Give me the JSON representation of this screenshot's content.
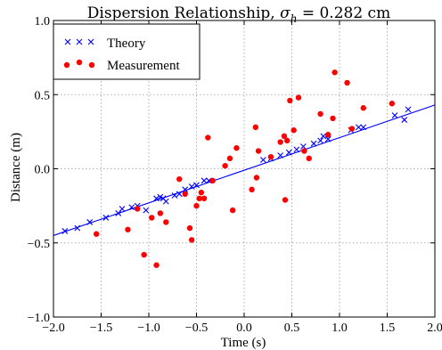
{
  "chart_data": {
    "type": "scatter",
    "title_main": "Dispersion Relationship, ",
    "title_sigma": "σ",
    "title_sub": "h",
    "title_tail": " = 0.282 cm",
    "xlabel": "Time (s)",
    "ylabel": "Distance (m)",
    "xlim": [
      -2.0,
      2.0
    ],
    "ylim": [
      -1.0,
      1.0
    ],
    "xticks": [
      -2.0,
      -1.5,
      -1.0,
      -0.5,
      0.0,
      0.5,
      1.0,
      1.5,
      2.0
    ],
    "yticks": [
      -1.0,
      -0.5,
      0.0,
      0.5,
      1.0
    ],
    "xtick_labels": [
      "−2.0",
      "−1.5",
      "−1.0",
      "−0.5",
      "0.0",
      "0.5",
      "1.0",
      "1.5",
      "2.0"
    ],
    "ytick_labels": [
      "−1.0",
      "−0.5",
      "0.0",
      "0.5",
      "1.0"
    ],
    "grid": true,
    "legend_position": "top-left",
    "colors": {
      "theory": "#0000ff",
      "measurement": "#ff0000",
      "line": "#0000ff"
    },
    "fit_line": {
      "x": [
        -2.0,
        2.0
      ],
      "y": [
        -0.45,
        0.43
      ]
    },
    "series": [
      {
        "name": "Theory",
        "marker": "x",
        "x": [
          -1.88,
          -1.75,
          -1.62,
          -1.45,
          -1.32,
          -1.28,
          -1.18,
          -1.12,
          -1.03,
          -0.92,
          -0.88,
          -0.85,
          -0.82,
          -0.73,
          -0.68,
          -0.62,
          -0.55,
          -0.5,
          -0.42,
          -0.37,
          0.2,
          0.28,
          0.38,
          0.47,
          0.55,
          0.62,
          0.73,
          0.8,
          0.83,
          0.88,
          1.12,
          1.2,
          1.25,
          1.58,
          1.68,
          1.72
        ],
        "y": [
          -0.42,
          -0.4,
          -0.36,
          -0.33,
          -0.3,
          -0.27,
          -0.26,
          -0.25,
          -0.28,
          -0.2,
          -0.19,
          -0.2,
          -0.22,
          -0.18,
          -0.17,
          -0.14,
          -0.12,
          -0.11,
          -0.08,
          -0.08,
          0.06,
          0.07,
          0.09,
          0.11,
          0.13,
          0.15,
          0.17,
          0.19,
          0.22,
          0.2,
          0.26,
          0.28,
          0.28,
          0.36,
          0.33,
          0.4
        ]
      },
      {
        "name": "Measurement",
        "marker": "o",
        "x": [
          -1.55,
          -1.22,
          -1.12,
          -1.05,
          -0.97,
          -0.92,
          -0.88,
          -0.82,
          -0.68,
          -0.62,
          -0.57,
          -0.55,
          -0.5,
          -0.47,
          -0.45,
          -0.42,
          -0.38,
          -0.33,
          -0.2,
          -0.15,
          -0.12,
          -0.08,
          0.08,
          0.12,
          0.13,
          0.15,
          0.28,
          0.38,
          0.42,
          0.43,
          0.45,
          0.48,
          0.52,
          0.57,
          0.63,
          0.68,
          0.8,
          0.88,
          0.93,
          0.95,
          1.08,
          1.13,
          1.25,
          1.55
        ],
        "y": [
          -0.44,
          -0.41,
          -0.27,
          -0.58,
          -0.33,
          -0.65,
          -0.3,
          -0.36,
          -0.07,
          -0.17,
          -0.4,
          -0.48,
          -0.25,
          -0.2,
          -0.16,
          -0.2,
          0.21,
          -0.08,
          0.02,
          0.07,
          -0.28,
          0.14,
          -0.14,
          0.28,
          -0.06,
          0.12,
          0.08,
          0.18,
          0.22,
          -0.21,
          0.19,
          0.46,
          0.26,
          0.48,
          0.12,
          0.07,
          0.37,
          0.23,
          0.34,
          0.65,
          0.58,
          0.27,
          0.41,
          0.44
        ]
      }
    ]
  }
}
